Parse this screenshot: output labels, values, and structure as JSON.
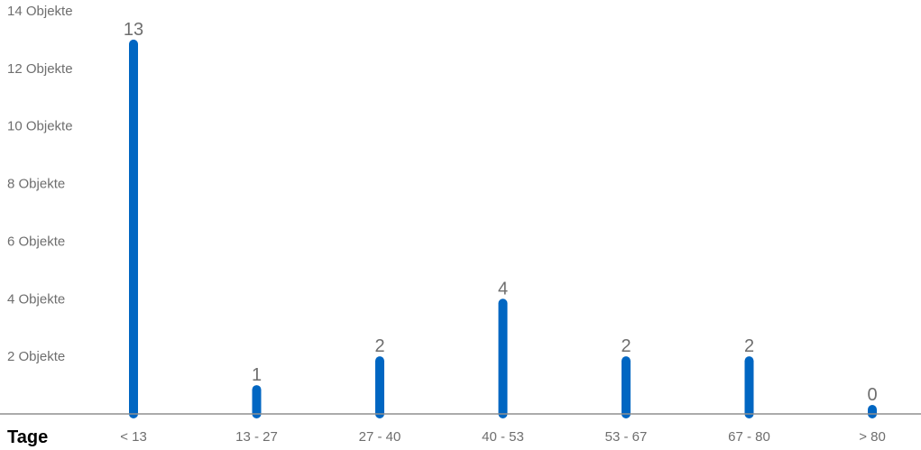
{
  "chart_data": {
    "type": "bar",
    "xlabel": "Tage",
    "ylabel": "",
    "ylim": [
      0,
      14
    ],
    "yticks": [
      {
        "value": 2,
        "label": "2 Objekte"
      },
      {
        "value": 4,
        "label": "4 Objekte"
      },
      {
        "value": 6,
        "label": "6 Objekte"
      },
      {
        "value": 8,
        "label": "8 Objekte"
      },
      {
        "value": 10,
        "label": "10 Objekte"
      },
      {
        "value": 12,
        "label": "12 Objekte"
      },
      {
        "value": 14,
        "label": "14 Objekte"
      }
    ],
    "categories": [
      "< 13",
      "13 - 27",
      "27 - 40",
      "40 - 53",
      "53 - 67",
      "67 - 80",
      "> 80"
    ],
    "values": [
      13,
      1,
      2,
      4,
      2,
      2,
      0
    ],
    "data_labels": [
      "13",
      "1",
      "2",
      "4",
      "2",
      "2",
      "0"
    ],
    "grid": false,
    "legend": "none",
    "colors": {
      "bar": "#0066c2",
      "axis": "#8f8f8f",
      "label": "#6e6e6e",
      "title": "#000000"
    }
  }
}
